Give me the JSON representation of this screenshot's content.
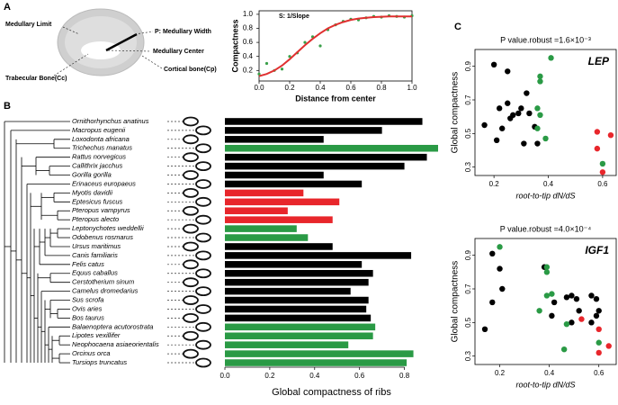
{
  "panel_labels": [
    "A",
    "B",
    "C"
  ],
  "diagram": {
    "labels": [
      "Medullary Limit",
      "P: Medullary Width",
      "Medullary Center",
      "Trabecular Bone(Cc)",
      "Cortical bone(Cp)"
    ]
  },
  "chart_data": [
    {
      "type": "line",
      "title": "S: 1/Slope",
      "xlabel": "Distance from center",
      "ylabel": "Compactness",
      "xlim": [
        0,
        1
      ],
      "ylim": [
        0.05,
        1.05
      ],
      "xticks": [
        {
          "value": 0,
          "label": "0.0"
        },
        0.2,
        0.4,
        0.6,
        0.8,
        {
          "value": 1,
          "label": "1.0"
        }
      ],
      "yticks": [
        0.2,
        0.4,
        0.6,
        0.8,
        {
          "value": 1,
          "label": "1.0"
        }
      ],
      "x": [
        0,
        0.05,
        0.1,
        0.15,
        0.2,
        0.25,
        0.3,
        0.35,
        0.4,
        0.45,
        0.5,
        0.55,
        0.6,
        0.65,
        0.7,
        0.75,
        0.8,
        0.85,
        0.9,
        0.95,
        1.0
      ],
      "series": [
        {
          "color": "#3aa04a",
          "style": "points",
          "values": [
            0.15,
            0.3,
            0.2,
            0.22,
            0.4,
            0.45,
            0.6,
            0.68,
            0.55,
            0.78,
            0.85,
            0.9,
            0.93,
            0.92,
            0.95,
            0.97,
            0.96,
            0.98,
            0.97,
            0.96,
            0.98
          ]
        },
        {
          "color": "#e03030",
          "style": "line",
          "values": [
            0.12,
            0.15,
            0.2,
            0.27,
            0.36,
            0.46,
            0.56,
            0.65,
            0.73,
            0.8,
            0.85,
            0.89,
            0.92,
            0.94,
            0.95,
            0.96,
            0.965,
            0.97,
            0.97,
            0.97,
            0.97
          ]
        }
      ]
    },
    {
      "type": "bar",
      "orientation": "horizontal",
      "xlabel": "Global compactness of ribs",
      "xlim": [
        0,
        0.95
      ],
      "xticks": [
        {
          "value": 0,
          "label": "0.0"
        },
        0.2,
        0.4,
        0.6,
        0.8
      ],
      "categories": [
        "Ornithorhynchus anatinus",
        "Macropus eugenii",
        "Loxodonta africana",
        "Trichechus manatus",
        "Rattus norvegicus",
        "Callithrix jacchus",
        "Gorilla gorilla",
        "Erinaceus europaeus",
        "Myotis davidii",
        "Eptesicus fuscus",
        "Pteropus vampyrus",
        "Pteropus alecto",
        "Leptonychotes weddellii",
        "Odobenus rosmarus",
        "Ursus maritimus",
        "Canis familiaris",
        "Felis catus",
        "Equus caballus",
        "Cerstotherium sinum",
        "Camelus dromedarius",
        "Sus scrofa",
        "Ovis aries",
        "Bos taurus",
        "Balaenoptera acutorostrata",
        "Lipotes vexillifer",
        "Neophocaena asiaeorientalis",
        "Orcinus orca",
        "Tursiops truncatus"
      ],
      "values": [
        0.88,
        0.7,
        0.44,
        0.95,
        0.9,
        0.8,
        0.44,
        0.61,
        0.35,
        0.51,
        0.28,
        0.48,
        0.32,
        0.37,
        0.48,
        0.83,
        0.61,
        0.66,
        0.64,
        0.56,
        0.64,
        0.63,
        0.65,
        0.67,
        0.66,
        0.55,
        0.84,
        0.81
      ],
      "colors": [
        "#000000",
        "#000000",
        "#000000",
        "#2a9a45",
        "#000000",
        "#000000",
        "#000000",
        "#000000",
        "#e8262b",
        "#e8262b",
        "#e8262b",
        "#e8262b",
        "#2a9a45",
        "#2a9a45",
        "#000000",
        "#000000",
        "#000000",
        "#000000",
        "#000000",
        "#000000",
        "#000000",
        "#000000",
        "#000000",
        "#2a9a45",
        "#2a9a45",
        "#2a9a45",
        "#2a9a45",
        "#2a9a45"
      ]
    },
    {
      "type": "scatter",
      "title": "P value.robust =1.6×10⁻³",
      "annotation": "LEP",
      "xlabel": "root-to-tip dN/dS",
      "ylabel": "Global compactness",
      "xlim": [
        0.13,
        0.65
      ],
      "ylim": [
        0.25,
        1.0
      ],
      "xticks": [
        0.2,
        0.4,
        0.6
      ],
      "yticks": [
        0.3,
        0.5,
        0.7,
        0.9
      ],
      "series": [
        {
          "color": "#000000",
          "x": [
            0.165,
            0.2,
            0.22,
            0.23,
            0.21,
            0.25,
            0.26,
            0.27,
            0.29,
            0.3,
            0.32,
            0.33,
            0.35,
            0.31,
            0.36,
            0.25
          ],
          "values": [
            0.55,
            0.91,
            0.65,
            0.53,
            0.46,
            0.68,
            0.59,
            0.61,
            0.62,
            0.65,
            0.74,
            0.62,
            0.54,
            0.44,
            0.44,
            0.87
          ]
        },
        {
          "color": "#2a9a45",
          "x": [
            0.37,
            0.37,
            0.36,
            0.37,
            0.36,
            0.41,
            0.39,
            0.6
          ],
          "values": [
            0.84,
            0.81,
            0.65,
            0.61,
            0.53,
            0.95,
            0.47,
            0.32
          ]
        },
        {
          "color": "#e8262b",
          "x": [
            0.58,
            0.63,
            0.58,
            0.6
          ],
          "values": [
            0.51,
            0.49,
            0.41,
            0.27
          ]
        }
      ]
    },
    {
      "type": "scatter",
      "title": "P value.robust =4.0×10⁻⁴",
      "annotation": "IGF1",
      "xlabel": "root-to-tip dN/dS",
      "ylabel": "Global compactness",
      "xlim": [
        0.1,
        0.67
      ],
      "ylim": [
        0.25,
        1.0
      ],
      "xticks": [
        0.2,
        0.4,
        0.6
      ],
      "yticks": [
        0.3,
        0.5,
        0.7,
        0.9
      ],
      "series": [
        {
          "color": "#000000",
          "x": [
            0.17,
            0.2,
            0.21,
            0.17,
            0.14,
            0.38,
            0.42,
            0.47,
            0.49,
            0.51,
            0.52,
            0.49,
            0.57,
            0.59,
            0.6,
            0.59,
            0.57,
            0.41
          ],
          "values": [
            0.91,
            0.82,
            0.7,
            0.62,
            0.46,
            0.83,
            0.62,
            0.65,
            0.66,
            0.64,
            0.57,
            0.5,
            0.66,
            0.64,
            0.57,
            0.54,
            0.5,
            0.54
          ]
        },
        {
          "color": "#2a9a45",
          "x": [
            0.2,
            0.39,
            0.39,
            0.39,
            0.41,
            0.36,
            0.47,
            0.46,
            0.6
          ],
          "values": [
            0.95,
            0.83,
            0.8,
            0.66,
            0.67,
            0.57,
            0.49,
            0.34,
            0.38
          ]
        },
        {
          "color": "#e8262b",
          "x": [
            0.53,
            0.6,
            0.6,
            0.64
          ],
          "values": [
            0.52,
            0.46,
            0.32,
            0.36
          ]
        }
      ]
    }
  ]
}
